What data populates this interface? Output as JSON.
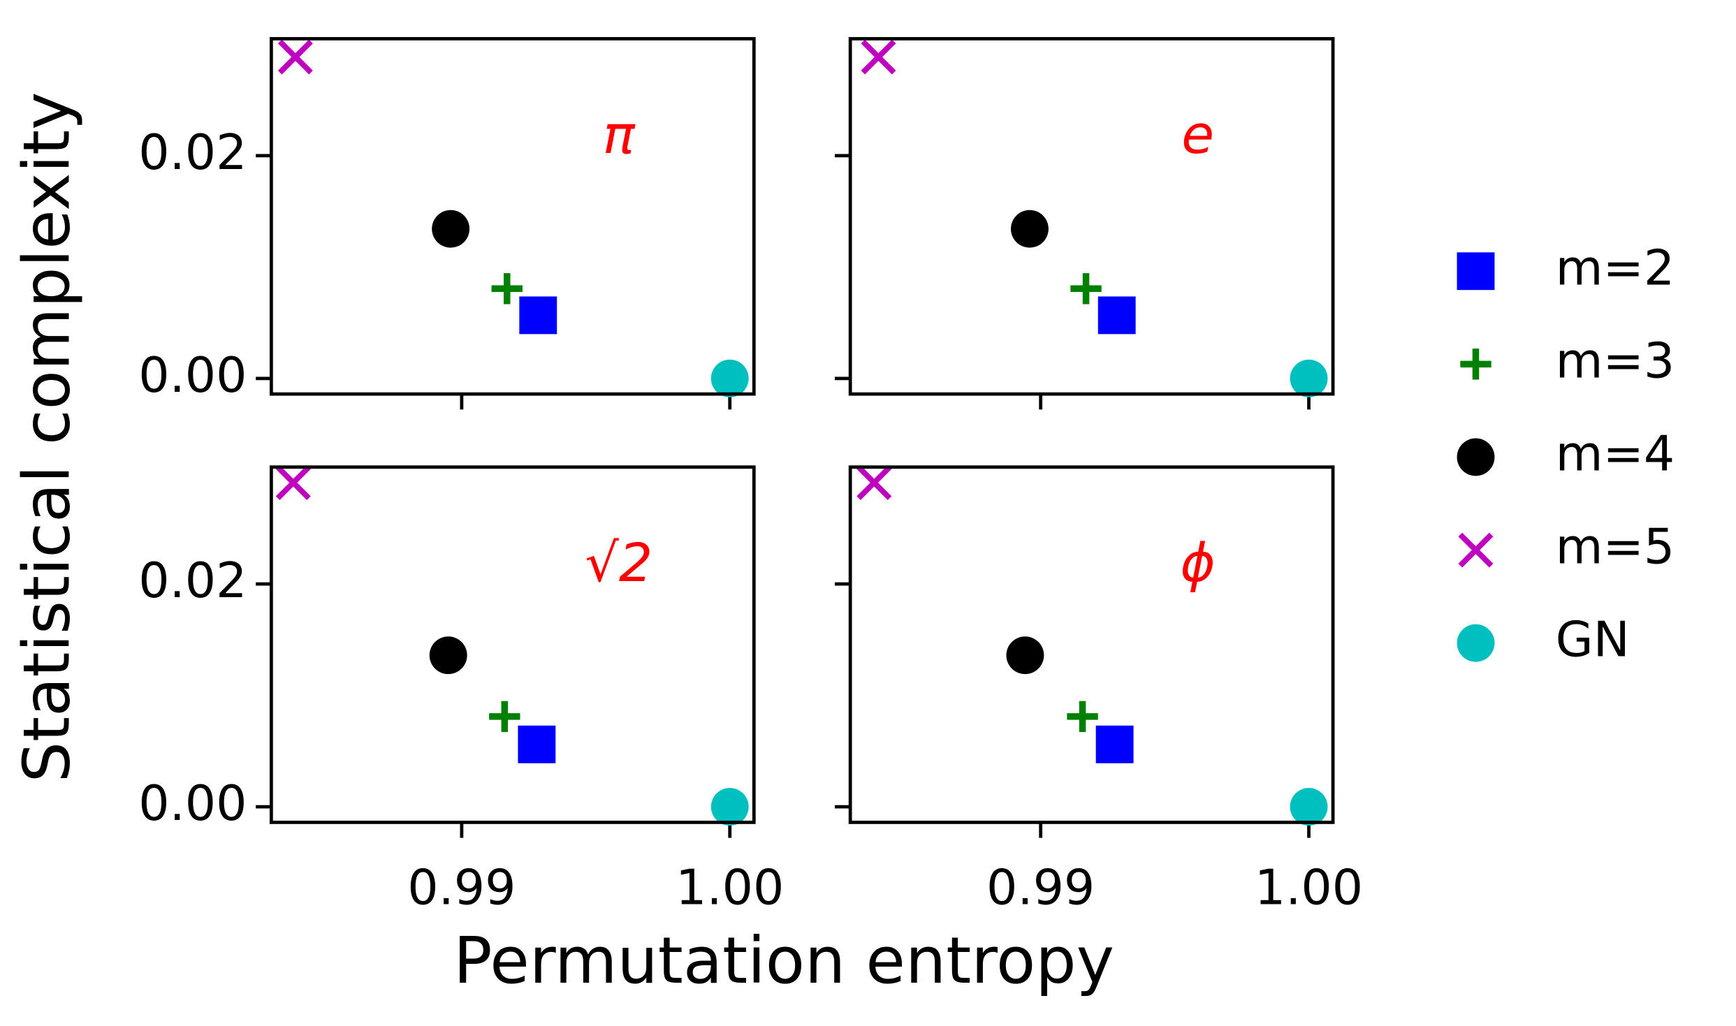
{
  "chart_data": {
    "type": "scatter",
    "xlabel": "Permutation entropy",
    "ylabel": "Statistical complexity",
    "xlim": [
      0.9829,
      1.0009
    ],
    "ylim": [
      -0.0014,
      0.0305
    ],
    "xticks": [
      0.99,
      {
        "value": 1.0,
        "label": "1.00"
      }
    ],
    "yticks": [
      {
        "value": 0,
        "label": "0.00"
      },
      0.02
    ],
    "series": [
      {
        "name": "m=2",
        "color": "#0000ff",
        "marker": "square"
      },
      {
        "name": "m=3",
        "color": "#008000",
        "marker": "plus"
      },
      {
        "name": "m=4",
        "color": "#000000",
        "marker": "circle"
      },
      {
        "name": "m=5",
        "color": "#bf00bf",
        "marker": "x"
      },
      {
        "name": "GN",
        "color": "#00bfbf",
        "marker": "circle"
      }
    ],
    "panels": [
      {
        "label": "π",
        "x": [
          0.99285,
          0.99169,
          0.98959,
          0.9838,
          1.0
        ],
        "y": [
          0.00567,
          0.00806,
          0.01343,
          0.02886,
          0.0
        ]
      },
      {
        "label": "e",
        "x": [
          0.99284,
          0.99169,
          0.98959,
          0.98395,
          1.0
        ],
        "y": [
          0.00567,
          0.00806,
          0.01343,
          0.02886,
          0.0
        ]
      },
      {
        "label": "√2",
        "x": [
          0.9928,
          0.9916,
          0.9895,
          0.98372,
          1.0
        ],
        "y": [
          0.0056,
          0.0081,
          0.0136,
          0.0291,
          0.0
        ]
      },
      {
        "label": "ϕ",
        "x": [
          0.99276,
          0.99156,
          0.98942,
          0.98379,
          1.0
        ],
        "y": [
          0.0056,
          0.0081,
          0.0136,
          0.0291,
          0.0
        ]
      }
    ]
  }
}
